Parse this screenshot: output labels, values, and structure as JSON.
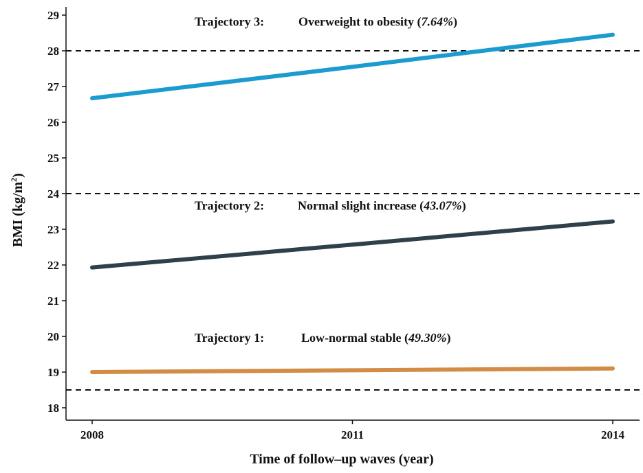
{
  "chart_data": {
    "type": "line",
    "title": "",
    "xlabel": "Time of follow–up waves (year)",
    "ylabel_main": "BMI (kg/m",
    "ylabel_sup": "2",
    "ylabel_close": ")",
    "x_ticks": [
      "2008",
      "2011",
      "2014"
    ],
    "x_values": [
      0,
      1,
      2
    ],
    "xlim": [
      -0.05,
      2.1
    ],
    "ylim": [
      17.6,
      29.3
    ],
    "y_ticks": [
      18,
      19,
      20,
      21,
      22,
      23,
      24,
      25,
      26,
      27,
      28,
      29
    ],
    "reference_lines": [
      18.5,
      24,
      28
    ],
    "grid": false,
    "series": [
      {
        "name": "Trajectory 1",
        "label": "Trajectory 1:",
        "description": "Low-normal stable",
        "percent": "49.30%",
        "color": "#d28c45",
        "values": [
          19.0,
          19.05,
          19.1
        ],
        "label_y": 19.85
      },
      {
        "name": "Trajectory 2",
        "label": "Trajectory 2:",
        "description": "Normal slight increase",
        "percent": "43.07%",
        "color": "#2e4049",
        "values": [
          21.93,
          22.57,
          23.22
        ],
        "label_y": 23.55
      },
      {
        "name": "Trajectory 3",
        "label": "Trajectory 3:",
        "description": "Overweight to obesity",
        "percent": "7.64%",
        "color": "#1c9bd0",
        "values": [
          26.67,
          27.55,
          28.45
        ],
        "label_y": 28.7
      }
    ]
  }
}
